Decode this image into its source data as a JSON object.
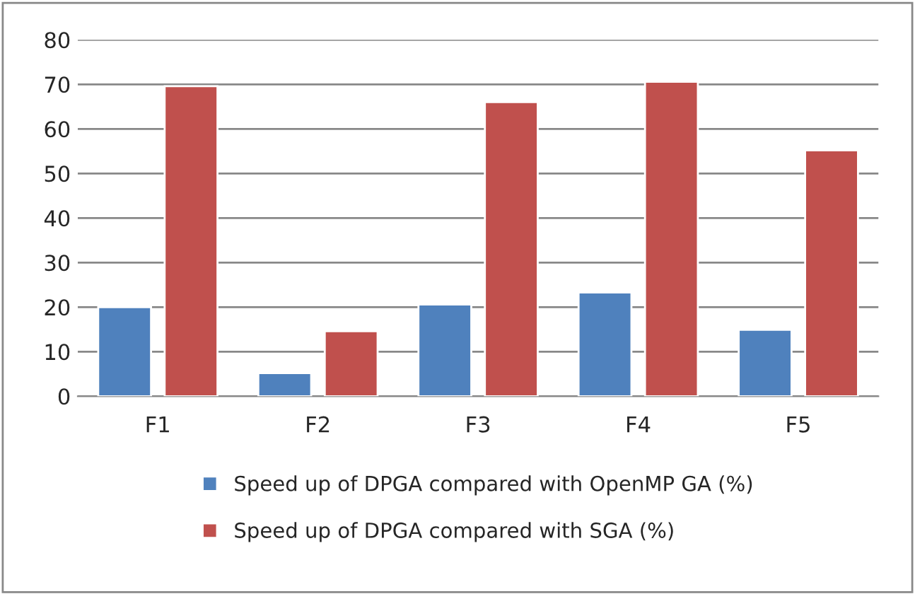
{
  "chart_data": {
    "type": "bar",
    "categories": [
      "F1",
      "F2",
      "F3",
      "F4",
      "F5"
    ],
    "series": [
      {
        "name": "Speed up of DPGA compared with OpenMP GA (%)",
        "color": "#4f81bd",
        "values": [
          20.0,
          5.2,
          20.6,
          23.3,
          14.9
        ]
      },
      {
        "name": "Speed up of DPGA compared with SGA (%)",
        "color": "#c0504d",
        "values": [
          69.6,
          14.6,
          66.0,
          70.6,
          55.2
        ]
      }
    ],
    "ylim": [
      0,
      80
    ],
    "yticks": [
      0,
      10,
      20,
      30,
      40,
      50,
      60,
      70,
      80
    ],
    "grid": "y",
    "legend": "bottom"
  }
}
